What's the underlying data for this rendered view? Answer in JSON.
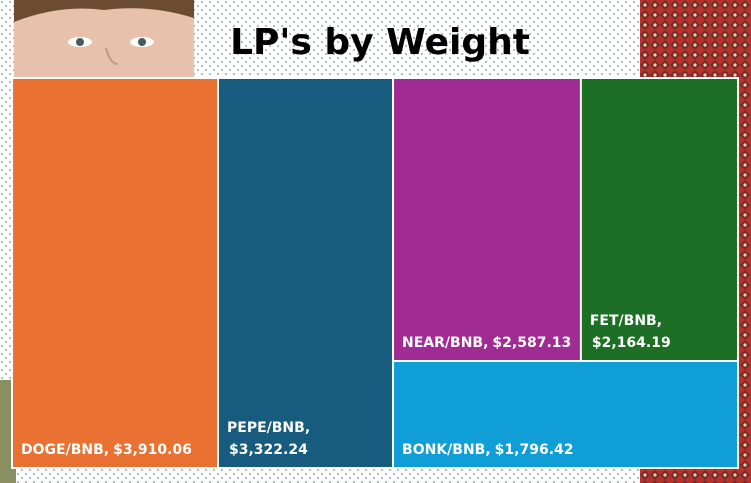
{
  "chart_data": {
    "type": "treemap",
    "title": "LP's by Weight",
    "categories": [
      "DOGE/BNB,",
      "PEPE/BNB,",
      "NEAR/BNB,",
      "FET/BNB,",
      "BONK/BNB,"
    ],
    "values": [
      3910.06,
      3322.24,
      2587.13,
      2164.19,
      1796.42
    ],
    "value_labels": [
      "$3,910.06",
      "$3,322.24",
      "$2,587.13",
      "$2,164.19",
      "$1,796.42"
    ],
    "colors": [
      "#e97132",
      "#175b7e",
      "#a02b93",
      "#1c6f25",
      "#0f9ed5"
    ]
  }
}
